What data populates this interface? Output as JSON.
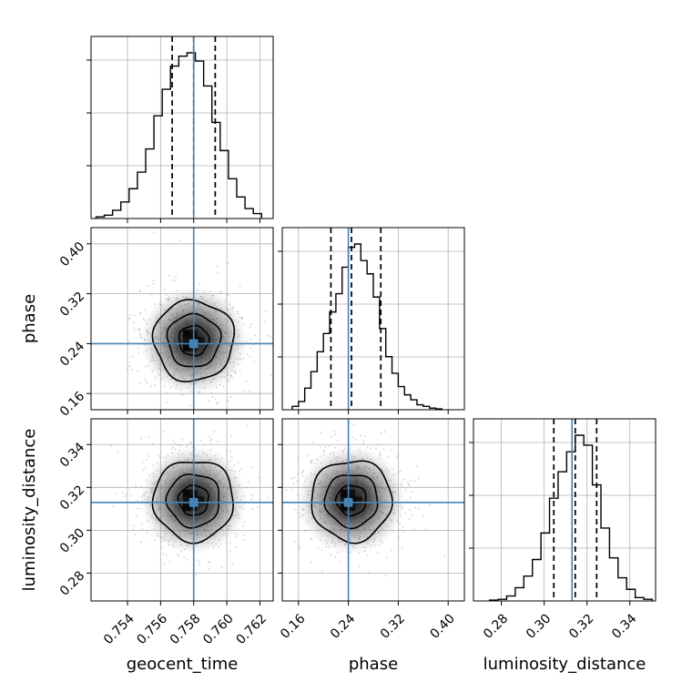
{
  "chart_data": {
    "type": "corner",
    "parameters": [
      {
        "name": "geocent_time",
        "label": "geocent_time",
        "range": [
          0.7518,
          0.7628
        ],
        "ticks": [
          0.754,
          0.756,
          0.758,
          0.76,
          0.762
        ],
        "tick_labels": [
          "0.754",
          "0.756",
          "0.758",
          "0.760",
          "0.762"
        ],
        "truth": 0.758,
        "mean": 0.758,
        "sigma": 0.00135,
        "quantiles": [
          0.7567,
          0.758,
          0.7593
        ]
      },
      {
        "name": "phase",
        "label": "phase",
        "range": [
          0.134,
          0.426
        ],
        "ticks": [
          0.16,
          0.24,
          0.32,
          0.4
        ],
        "tick_labels": [
          "0.16",
          "0.24",
          "0.32",
          "0.40"
        ],
        "truth": 0.24,
        "mean": 0.245,
        "sigma": 0.036,
        "quantiles": [
          0.212,
          0.245,
          0.292
        ]
      },
      {
        "name": "luminosity_distance",
        "label": "luminosity_distance",
        "range": [
          0.267,
          0.352
        ],
        "ticks": [
          0.28,
          0.3,
          0.32,
          0.34
        ],
        "tick_labels": [
          "0.28",
          "0.30",
          "0.32",
          "0.34"
        ],
        "truth": 0.313,
        "mean": 0.314,
        "sigma": 0.0105,
        "quantiles": [
          0.3045,
          0.3145,
          0.3245
        ]
      }
    ],
    "histograms": [
      {
        "parameter": "geocent_time",
        "bin_edges": [
          0.7521,
          0.7526,
          0.7531,
          0.7536,
          0.7541,
          0.7546,
          0.7551,
          0.7556,
          0.7561,
          0.7566,
          0.7571,
          0.7576,
          0.7581,
          0.7586,
          0.7591,
          0.7596,
          0.7601,
          0.7606,
          0.7611,
          0.7616,
          0.7621
        ],
        "counts": [
          0.01,
          0.02,
          0.05,
          0.1,
          0.18,
          0.28,
          0.42,
          0.62,
          0.78,
          0.92,
          0.98,
          1.0,
          0.95,
          0.8,
          0.58,
          0.41,
          0.24,
          0.13,
          0.06,
          0.03
        ]
      },
      {
        "parameter": "phase",
        "bin_edges": [
          0.15,
          0.16,
          0.17,
          0.18,
          0.19,
          0.2,
          0.21,
          0.22,
          0.23,
          0.24,
          0.25,
          0.26,
          0.27,
          0.28,
          0.29,
          0.3,
          0.31,
          0.32,
          0.33,
          0.34,
          0.35,
          0.36,
          0.37,
          0.38,
          0.39
        ],
        "counts": [
          0.02,
          0.05,
          0.13,
          0.23,
          0.35,
          0.46,
          0.59,
          0.7,
          0.86,
          0.98,
          1.0,
          0.9,
          0.82,
          0.68,
          0.49,
          0.32,
          0.22,
          0.14,
          0.09,
          0.06,
          0.03,
          0.02,
          0.01,
          0.005
        ]
      },
      {
        "parameter": "luminosity_distance",
        "bin_edges": [
          0.2745,
          0.2785,
          0.2825,
          0.2865,
          0.2905,
          0.2945,
          0.2985,
          0.3025,
          0.3065,
          0.3105,
          0.3145,
          0.3185,
          0.3225,
          0.3265,
          0.3305,
          0.3345,
          0.3385,
          0.3425,
          0.3465,
          0.3505
        ],
        "counts": [
          0.005,
          0.01,
          0.03,
          0.08,
          0.15,
          0.25,
          0.41,
          0.62,
          0.78,
          0.9,
          1.0,
          0.94,
          0.7,
          0.44,
          0.26,
          0.14,
          0.07,
          0.02,
          0.01
        ]
      }
    ],
    "contour_levels": [
      0.2,
      0.5,
      0.8
    ],
    "truth_color": "#4682b4",
    "histogram_color": "#000000",
    "quantile_linestyle": "dashed",
    "grid": true
  }
}
